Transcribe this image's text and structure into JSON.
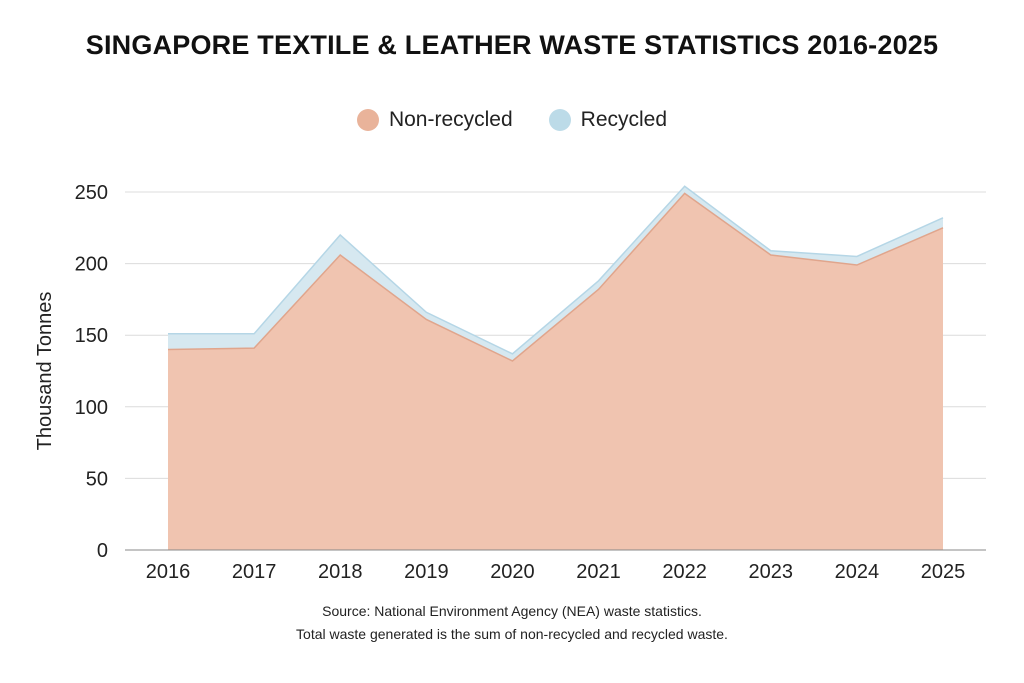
{
  "chart_data": {
    "type": "area",
    "stacked": true,
    "title": "SINGAPORE TEXTILE & LEATHER WASTE STATISTICS 2016-2025",
    "ylabel": "Thousand Tonnes",
    "xlabel": "",
    "x": [
      "2016",
      "2017",
      "2018",
      "2019",
      "2020",
      "2021",
      "2022",
      "2023",
      "2024",
      "2025"
    ],
    "ylim": [
      0,
      250
    ],
    "yticks": [
      0,
      50,
      100,
      150,
      200,
      250
    ],
    "grid": true,
    "legend_position": "top-center",
    "series": [
      {
        "name": "Non-recycled",
        "color": "#f0c4b0",
        "edge": "#e0a58c",
        "values": [
          140,
          141,
          206,
          161,
          132,
          182,
          249,
          206,
          199,
          225
        ]
      },
      {
        "name": "Recycled",
        "color": "#d6e8f0",
        "edge": "#b5d6e6",
        "values": [
          11,
          10,
          14,
          5,
          5,
          6,
          5,
          3,
          6,
          7
        ]
      }
    ],
    "legend_colors": [
      "#e9b39a",
      "#bcdbe8"
    ]
  },
  "footnotes": [
    "Source: National Environment Agency (NEA) waste statistics.",
    "Total waste generated is the sum of non-recycled and recycled waste."
  ]
}
